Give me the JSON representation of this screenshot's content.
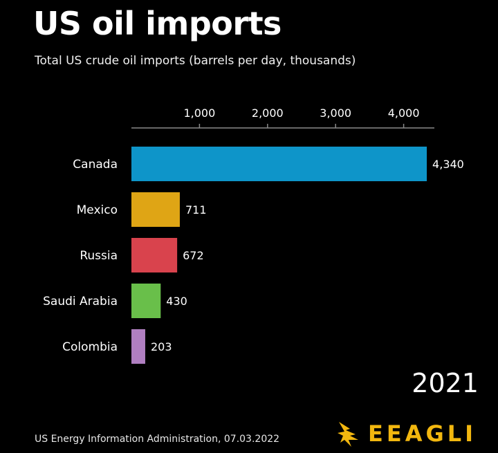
{
  "header": {
    "title": "US oil imports",
    "subtitle": "Total US crude oil imports (barrels per day, thousands)"
  },
  "year": "2021",
  "source": "US Energy Information Administration, 07.03.2022",
  "logo": {
    "text": "EEAGLI",
    "icon": "eagle-logo-icon",
    "color": "#f2b70f"
  },
  "chart_data": {
    "type": "bar",
    "orientation": "horizontal",
    "title": "US oil imports",
    "subtitle": "Total US crude oil imports (barrels per day, thousands)",
    "categories": [
      "Canada",
      "Mexico",
      "Russia",
      "Saudi Arabia",
      "Colombia"
    ],
    "values": [
      4340,
      711,
      672,
      430,
      203
    ],
    "value_labels": [
      "4,340",
      "711",
      "672",
      "430",
      "203"
    ],
    "colors": [
      "#0e95c9",
      "#dfa515",
      "#d9434d",
      "#69bf4a",
      "#b07fc1"
    ],
    "xticks": [
      1000,
      2000,
      3000,
      4000
    ],
    "xtick_labels": [
      "1,000",
      "2,000",
      "3,000",
      "4,000"
    ],
    "xlim": [
      0,
      4500
    ],
    "axis_position": "top",
    "grid": false
  }
}
